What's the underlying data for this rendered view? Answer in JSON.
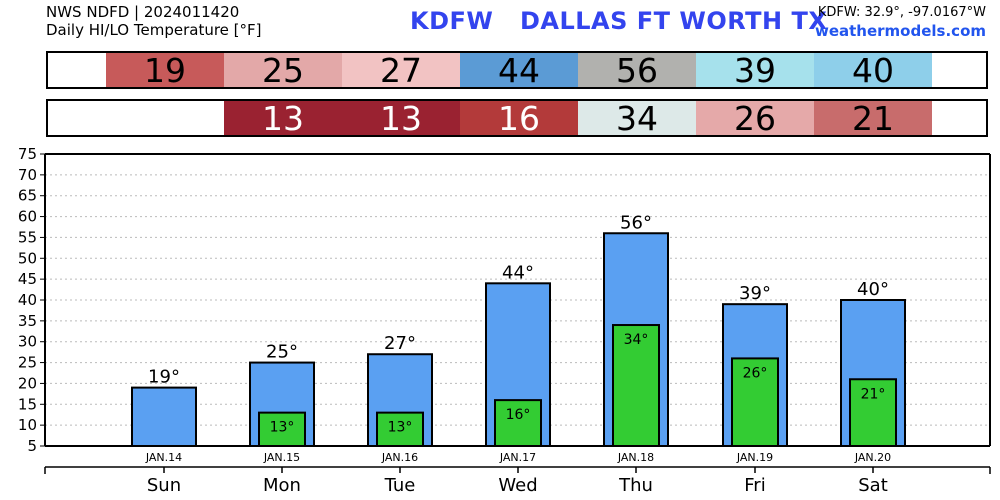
{
  "header": {
    "source_line": "NWS NDFD | 2024011420",
    "subtitle": "Daily HI/LO Temperature [°F]",
    "station": "KDFW   DALLAS FT WORTH TX",
    "coords": "KDFW: 32.9°, -97.0167°W",
    "site": "weathermodels.com"
  },
  "hi_strip": [
    {
      "value": "19",
      "color": "#c75a5a",
      "text_color": "#000000"
    },
    {
      "value": "25",
      "color": "#e3a8a8",
      "text_color": "#000000"
    },
    {
      "value": "27",
      "color": "#f2c3c3",
      "text_color": "#000000"
    },
    {
      "value": "44",
      "color": "#5b9bd5",
      "text_color": "#000000"
    },
    {
      "value": "56",
      "color": "#b1b1ae",
      "text_color": "#000000"
    },
    {
      "value": "39",
      "color": "#a6e1ec",
      "text_color": "#000000"
    },
    {
      "value": "40",
      "color": "#8ecfea",
      "text_color": "#000000"
    }
  ],
  "lo_strip": [
    {
      "value": "13",
      "color": "#9a2231",
      "text_color": "#ffffff"
    },
    {
      "value": "13",
      "color": "#9a2231",
      "text_color": "#ffffff"
    },
    {
      "value": "16",
      "color": "#b33a3a",
      "text_color": "#ffffff"
    },
    {
      "value": "34",
      "color": "#dde9e8",
      "text_color": "#000000"
    },
    {
      "value": "26",
      "color": "#e5a9a9",
      "text_color": "#000000"
    },
    {
      "value": "21",
      "color": "#c86c6c",
      "text_color": "#000000"
    }
  ],
  "chart_data": {
    "type": "bar",
    "categories": [
      "Sun",
      "Mon",
      "Tue",
      "Wed",
      "Thu",
      "Fri",
      "Sat"
    ],
    "dates": [
      "JAN.14",
      "JAN.15",
      "JAN.16",
      "JAN.17",
      "JAN.18",
      "JAN.19",
      "JAN.20"
    ],
    "series": [
      {
        "name": "",
        "values": [
          19,
          25,
          27,
          44,
          56,
          39,
          40
        ],
        "color": "#5aa0f2"
      },
      {
        "name": "",
        "values": [
          null,
          13,
          13,
          16,
          34,
          26,
          21
        ],
        "color": "#33cc33"
      }
    ],
    "hi_labels": [
      "19°",
      "25°",
      "27°",
      "44°",
      "56°",
      "39°",
      "40°"
    ],
    "lo_labels": [
      "",
      "13°",
      "13°",
      "16°",
      "34°",
      "26°",
      "21°"
    ],
    "yticks": [
      "5",
      "10",
      "15",
      "20",
      "25",
      "30",
      "35",
      "40",
      "45",
      "50",
      "55",
      "60",
      "65",
      "70",
      "75"
    ],
    "ylim": [
      5,
      75
    ],
    "grid": true
  }
}
